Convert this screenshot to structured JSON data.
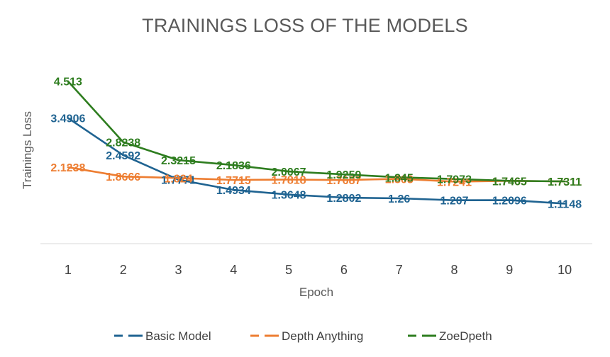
{
  "chart_data": {
    "type": "line",
    "title": "TRAININGS LOSS OF THE MODELS",
    "xlabel": "Epoch",
    "ylabel": "Trainings Loss",
    "categories": [
      "1",
      "2",
      "3",
      "4",
      "5",
      "6",
      "7",
      "8",
      "9",
      "10"
    ],
    "ylim": [
      0,
      5
    ],
    "grid": false,
    "legend_position": "bottom",
    "series": [
      {
        "name": "Basic Model",
        "color": "#1f6391",
        "values": [
          3.4906,
          2.4592,
          1.7771,
          1.4934,
          1.3648,
          1.2802,
          1.26,
          1.207,
          1.2096,
          1.1148
        ],
        "labels": [
          "3.4906",
          "2.4592",
          "1.7771",
          "1.4934",
          "1.3648",
          "1.2802",
          "1.26",
          "1.207",
          "1.2096",
          "1.1148"
        ]
      },
      {
        "name": "Depth Anything",
        "color": "#ed7d31",
        "values": [
          2.1238,
          1.8666,
          1.824,
          1.7715,
          1.7818,
          1.7687,
          1.803,
          1.7241,
          1.7465,
          1.7311
        ],
        "labels": [
          "2.1238",
          "1.8666",
          "1.824",
          "1.7715",
          "1.7818",
          "1.7687",
          "1.803",
          "1.7241",
          "1.7465",
          "1.7311"
        ]
      },
      {
        "name": "ZoeDpeth",
        "color": "#2e7d1f",
        "values": [
          4.513,
          2.8238,
          2.3215,
          2.1836,
          2.0067,
          1.9259,
          1.845,
          1.7973,
          1.7465,
          1.7311
        ],
        "labels": [
          "4.513",
          "2.8238",
          "2.3215",
          "2.1836",
          "2.0067",
          "1.9259",
          "1.845",
          "1.7973",
          "1.7465",
          "1.7311"
        ]
      }
    ]
  }
}
